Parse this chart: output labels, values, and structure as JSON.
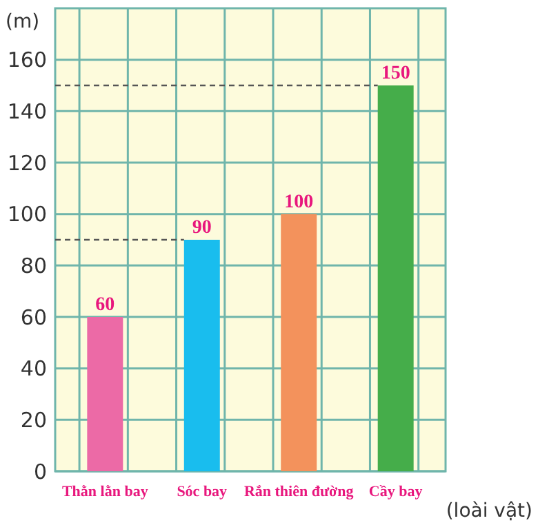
{
  "chart_data": {
    "type": "bar",
    "xlabel": "(loài vật)",
    "ylabel": "(m)",
    "categories": [
      "Thằn lằn bay",
      "Sóc bay",
      "Rắn thiên đường",
      "Cầy bay"
    ],
    "values": [
      60,
      90,
      100,
      150
    ],
    "colors": [
      "#ec6aa6",
      "#19bdee",
      "#f3925c",
      "#45ad4a"
    ],
    "ylim": [
      0,
      180
    ],
    "yticks": [
      0,
      20,
      40,
      60,
      80,
      100,
      120,
      140,
      160
    ],
    "grid": true,
    "data_labels": true,
    "ref_lines": [
      {
        "axis": "y",
        "value": 150,
        "line_style": "dashed"
      },
      {
        "axis": "y",
        "value": 90,
        "line_style": "dashed"
      }
    ]
  }
}
